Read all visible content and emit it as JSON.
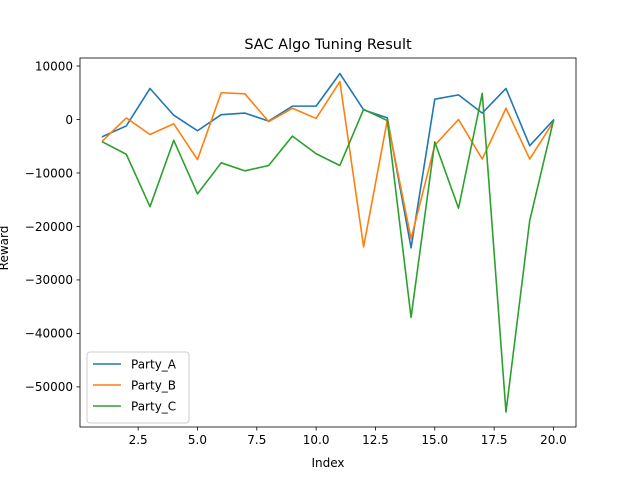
{
  "chart_data": {
    "type": "line",
    "title": "SAC Algo Tuning Result",
    "xlabel": "Index",
    "ylabel": "Reward",
    "xlim": [
      0.05,
      20.95
    ],
    "ylim": [
      -57500,
      11500
    ],
    "xticks": [
      2.5,
      5.0,
      7.5,
      10.0,
      12.5,
      15.0,
      17.5,
      20.0
    ],
    "xtick_labels": [
      "2.5",
      "5.0",
      "7.5",
      "10.0",
      "12.5",
      "15.0",
      "17.5",
      "20.0"
    ],
    "yticks": [
      10000,
      0,
      -10000,
      -20000,
      -30000,
      -40000,
      -50000
    ],
    "ytick_labels": [
      "10000",
      "0",
      "−10000",
      "−20000",
      "−30000",
      "−40000",
      "−50000"
    ],
    "grid": false,
    "legend_position": "lower-left",
    "x": [
      1,
      2,
      3,
      4,
      5,
      6,
      7,
      8,
      9,
      10,
      11,
      12,
      13,
      14,
      15,
      16,
      17,
      18,
      19,
      20
    ],
    "series": [
      {
        "name": "Party_A",
        "color": "#1f77b4",
        "values": [
          -3200,
          -1200,
          5800,
          800,
          -2100,
          900,
          1200,
          -300,
          2500,
          2500,
          8600,
          1800,
          300,
          -24000,
          3800,
          4600,
          1200,
          5800,
          -4900,
          -100
        ]
      },
      {
        "name": "Party_B",
        "color": "#ff7f0e",
        "values": [
          -4000,
          300,
          -2800,
          -800,
          -7500,
          5000,
          4800,
          -400,
          2100,
          200,
          7100,
          -23800,
          -100,
          -22300,
          -4800,
          0,
          -7400,
          2100,
          -7400,
          -400
        ]
      },
      {
        "name": "Party_C",
        "color": "#2ca02c",
        "values": [
          -4200,
          -6500,
          -16300,
          -3900,
          -13900,
          -8100,
          -9600,
          -8600,
          -3100,
          -6400,
          -8600,
          1900,
          -200,
          -37000,
          -4200,
          -16600,
          4900,
          -54700,
          -18900,
          -200
        ]
      }
    ]
  }
}
